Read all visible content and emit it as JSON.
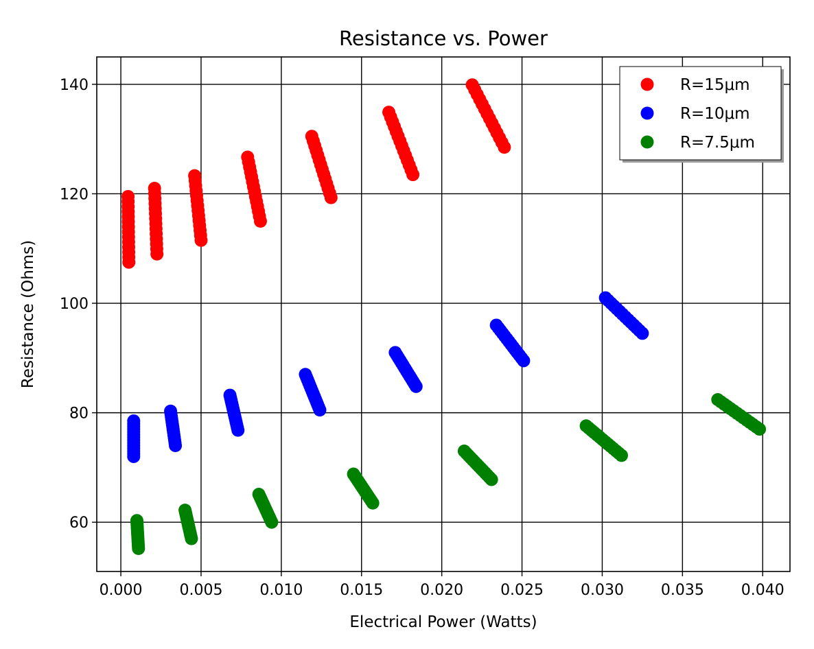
{
  "chart_data": {
    "type": "scatter",
    "title": "Resistance vs. Power",
    "xlabel": "Electrical Power (Watts)",
    "ylabel": "Resistance (Ohms)",
    "xlim": [
      -0.0015,
      0.0417
    ],
    "ylim": [
      51,
      145
    ],
    "x_ticks": [
      0.0,
      0.005,
      0.01,
      0.015,
      0.02,
      0.025,
      0.03,
      0.035,
      0.04
    ],
    "x_tick_labels": [
      "0.000",
      "0.005",
      "0.010",
      "0.015",
      "0.020",
      "0.025",
      "0.030",
      "0.035",
      "0.040"
    ],
    "y_ticks": [
      60,
      80,
      100,
      120,
      140
    ],
    "y_tick_labels": [
      "60",
      "80",
      "100",
      "120",
      "140"
    ],
    "grid": true,
    "legend_position": "top-right",
    "series": [
      {
        "name": "R=15μm",
        "color": "#ff0000",
        "clusters": [
          {
            "x0": 0.00045,
            "y0": 119.5,
            "x1": 0.0005,
            "y1": 107.5
          },
          {
            "x0": 0.0021,
            "y0": 121.0,
            "x1": 0.00225,
            "y1": 109.0
          },
          {
            "x0": 0.0046,
            "y0": 123.3,
            "x1": 0.005,
            "y1": 111.5
          },
          {
            "x0": 0.0079,
            "y0": 126.7,
            "x1": 0.0087,
            "y1": 115.0
          },
          {
            "x0": 0.0119,
            "y0": 130.5,
            "x1": 0.0131,
            "y1": 119.3
          },
          {
            "x0": 0.0167,
            "y0": 134.9,
            "x1": 0.0182,
            "y1": 123.5
          },
          {
            "x0": 0.0219,
            "y0": 139.9,
            "x1": 0.0239,
            "y1": 128.5
          }
        ]
      },
      {
        "name": "R=10μm",
        "color": "#0000ff",
        "clusters": [
          {
            "x0": 0.0008,
            "y0": 78.5,
            "x1": 0.0008,
            "y1": 72.0
          },
          {
            "x0": 0.0031,
            "y0": 80.3,
            "x1": 0.0034,
            "y1": 74.0
          },
          {
            "x0": 0.0068,
            "y0": 83.2,
            "x1": 0.0073,
            "y1": 76.8
          },
          {
            "x0": 0.0115,
            "y0": 87.0,
            "x1": 0.0124,
            "y1": 80.5
          },
          {
            "x0": 0.0171,
            "y0": 91.0,
            "x1": 0.0184,
            "y1": 84.8
          },
          {
            "x0": 0.0234,
            "y0": 96.0,
            "x1": 0.0251,
            "y1": 89.5
          },
          {
            "x0": 0.0302,
            "y0": 101.0,
            "x1": 0.0325,
            "y1": 94.5
          }
        ]
      },
      {
        "name": "R=7.5μm",
        "color": "#008000",
        "clusters": [
          {
            "x0": 0.001,
            "y0": 60.3,
            "x1": 0.0011,
            "y1": 55.2
          },
          {
            "x0": 0.004,
            "y0": 62.2,
            "x1": 0.0044,
            "y1": 57.0
          },
          {
            "x0": 0.0086,
            "y0": 65.1,
            "x1": 0.0094,
            "y1": 60.0
          },
          {
            "x0": 0.0145,
            "y0": 68.8,
            "x1": 0.0157,
            "y1": 63.5
          },
          {
            "x0": 0.0214,
            "y0": 73.0,
            "x1": 0.0231,
            "y1": 67.8
          },
          {
            "x0": 0.029,
            "y0": 77.6,
            "x1": 0.0312,
            "y1": 72.2
          },
          {
            "x0": 0.0372,
            "y0": 82.4,
            "x1": 0.0398,
            "y1": 77.0
          }
        ]
      }
    ]
  }
}
